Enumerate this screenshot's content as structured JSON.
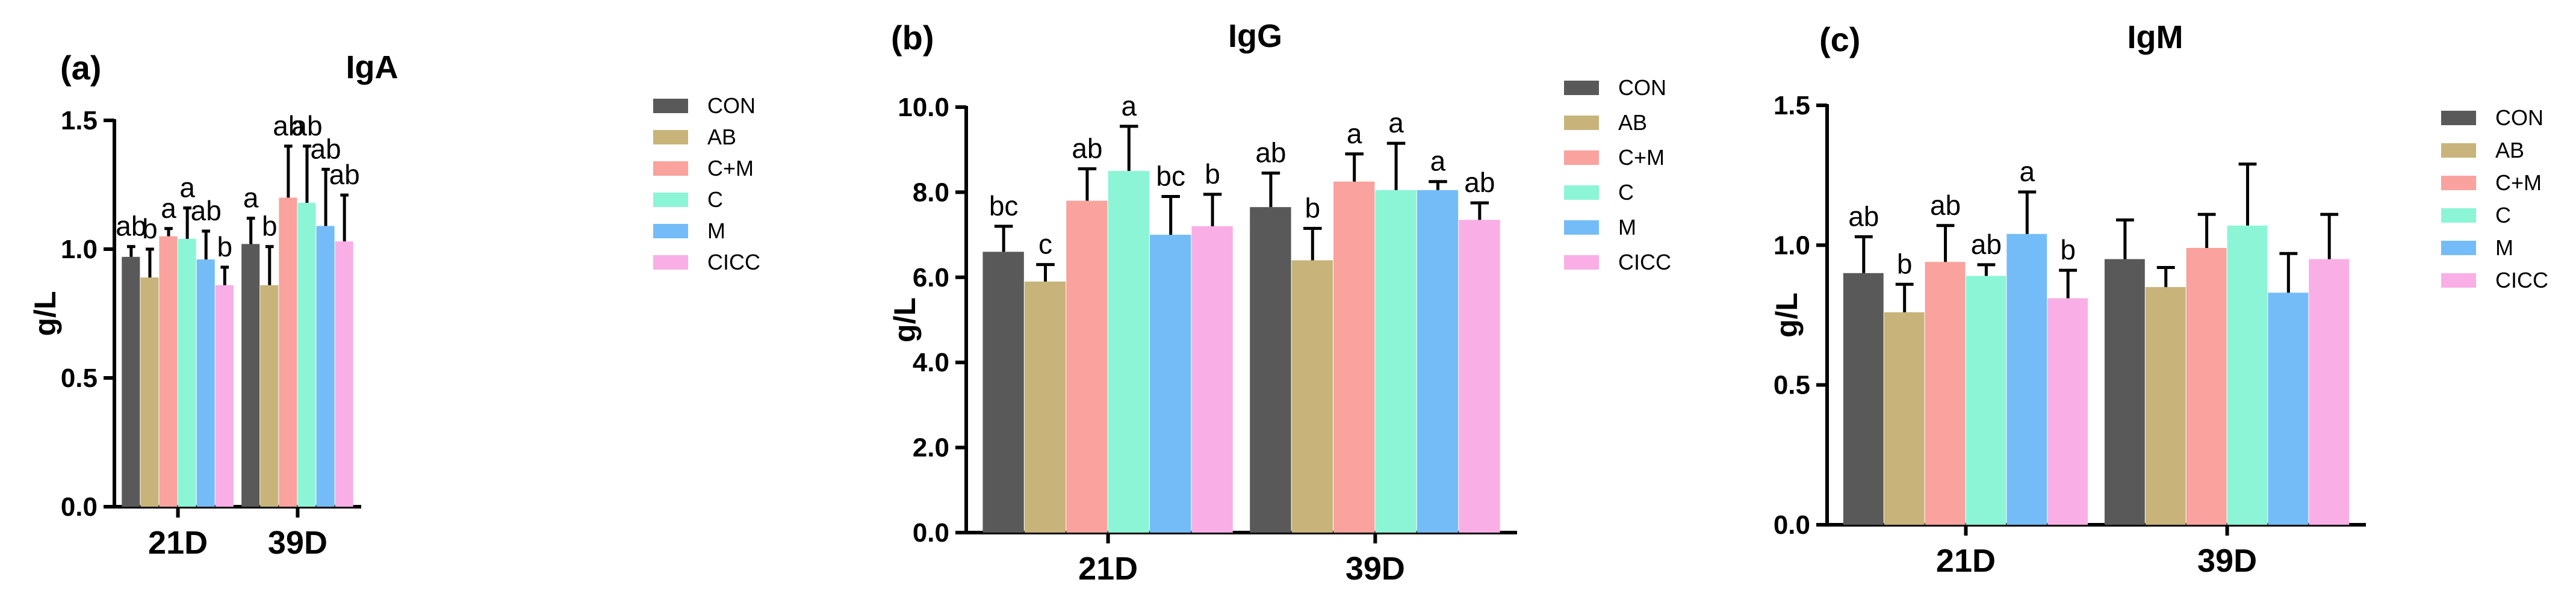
{
  "colors": {
    "CON": "#595959",
    "AB": "#c8b47a",
    "C+M": "#f9a29e",
    "C": "#8cf5d6",
    "M": "#74bcf8",
    "CICC": "#faaee6"
  },
  "chart_data": [
    {
      "type": "bar",
      "panel": "(a)",
      "title": "IgA",
      "xlabel": "",
      "ylabel": "g/L",
      "ylim": [
        0,
        1.5
      ],
      "yticks": [
        "0.0",
        "0.5",
        "1.0",
        "1.5"
      ],
      "categories": [
        "21D",
        "39D"
      ],
      "legend": [
        "CON",
        "AB",
        "C+M",
        "C",
        "M",
        "CICC"
      ],
      "series": [
        {
          "name": "CON",
          "values": [
            0.97,
            1.02
          ],
          "errors": [
            0.04,
            0.1
          ],
          "labels": [
            "ab",
            "a"
          ]
        },
        {
          "name": "AB",
          "values": [
            0.89,
            0.86
          ],
          "errors": [
            0.11,
            0.15
          ],
          "labels": [
            "b",
            "b"
          ]
        },
        {
          "name": "C+M",
          "values": [
            1.05,
            1.2
          ],
          "errors": [
            0.03,
            0.2
          ],
          "labels": [
            "a",
            "ab"
          ]
        },
        {
          "name": "C",
          "values": [
            1.04,
            1.18
          ],
          "errors": [
            0.12,
            0.22
          ],
          "labels": [
            "a",
            "ab"
          ]
        },
        {
          "name": "M",
          "values": [
            0.96,
            1.09
          ],
          "errors": [
            0.11,
            0.22
          ],
          "labels": [
            "ab",
            "ab"
          ]
        },
        {
          "name": "CICC",
          "values": [
            0.86,
            1.03
          ],
          "errors": [
            0.07,
            0.18
          ],
          "labels": [
            "b",
            "ab"
          ]
        }
      ]
    },
    {
      "type": "bar",
      "panel": "(b)",
      "title": "IgG",
      "xlabel": "",
      "ylabel": "g/L",
      "ylim": [
        0,
        10
      ],
      "yticks": [
        "0.0",
        "2.0",
        "4.0",
        "6.0",
        "8.0",
        "10.0"
      ],
      "categories": [
        "21D",
        "39D"
      ],
      "legend": [
        "CON",
        "AB",
        "C+M",
        "C",
        "M",
        "CICC"
      ],
      "series": [
        {
          "name": "CON",
          "values": [
            6.6,
            7.65
          ],
          "errors": [
            0.6,
            0.8
          ],
          "labels": [
            "bc",
            "ab"
          ]
        },
        {
          "name": "AB",
          "values": [
            5.9,
            6.4
          ],
          "errors": [
            0.4,
            0.75
          ],
          "labels": [
            "c",
            "b"
          ]
        },
        {
          "name": "C+M",
          "values": [
            7.8,
            8.25
          ],
          "errors": [
            0.75,
            0.65
          ],
          "labels": [
            "ab",
            "a"
          ]
        },
        {
          "name": "C",
          "values": [
            8.5,
            8.05
          ],
          "errors": [
            1.05,
            1.1
          ],
          "labels": [
            "a",
            "a"
          ]
        },
        {
          "name": "M",
          "values": [
            7.0,
            8.05
          ],
          "errors": [
            0.9,
            0.2
          ],
          "labels": [
            "bc",
            "a"
          ]
        },
        {
          "name": "CICC",
          "values": [
            7.2,
            7.35
          ],
          "errors": [
            0.75,
            0.4
          ],
          "labels": [
            "b",
            "ab"
          ]
        }
      ]
    },
    {
      "type": "bar",
      "panel": "(c)",
      "title": "IgM",
      "xlabel": "",
      "ylabel": "g/L",
      "ylim": [
        0,
        1.5
      ],
      "yticks": [
        "0.0",
        "0.5",
        "1.0",
        "1.5"
      ],
      "categories": [
        "21D",
        "39D"
      ],
      "legend": [
        "CON",
        "AB",
        "C+M",
        "C",
        "M",
        "CICC"
      ],
      "series": [
        {
          "name": "CON",
          "values": [
            0.9,
            0.95
          ],
          "errors": [
            0.13,
            0.14
          ],
          "labels": [
            "ab",
            ""
          ]
        },
        {
          "name": "AB",
          "values": [
            0.76,
            0.85
          ],
          "errors": [
            0.1,
            0.07
          ],
          "labels": [
            "b",
            ""
          ]
        },
        {
          "name": "C+M",
          "values": [
            0.94,
            0.99
          ],
          "errors": [
            0.13,
            0.12
          ],
          "labels": [
            "ab",
            ""
          ]
        },
        {
          "name": "C",
          "values": [
            0.89,
            1.07
          ],
          "errors": [
            0.04,
            0.22
          ],
          "labels": [
            "ab",
            ""
          ]
        },
        {
          "name": "M",
          "values": [
            1.04,
            0.83
          ],
          "errors": [
            0.15,
            0.14
          ],
          "labels": [
            "a",
            ""
          ]
        },
        {
          "name": "CICC",
          "values": [
            0.81,
            0.95
          ],
          "errors": [
            0.1,
            0.16
          ],
          "labels": [
            "b",
            ""
          ]
        }
      ]
    }
  ]
}
